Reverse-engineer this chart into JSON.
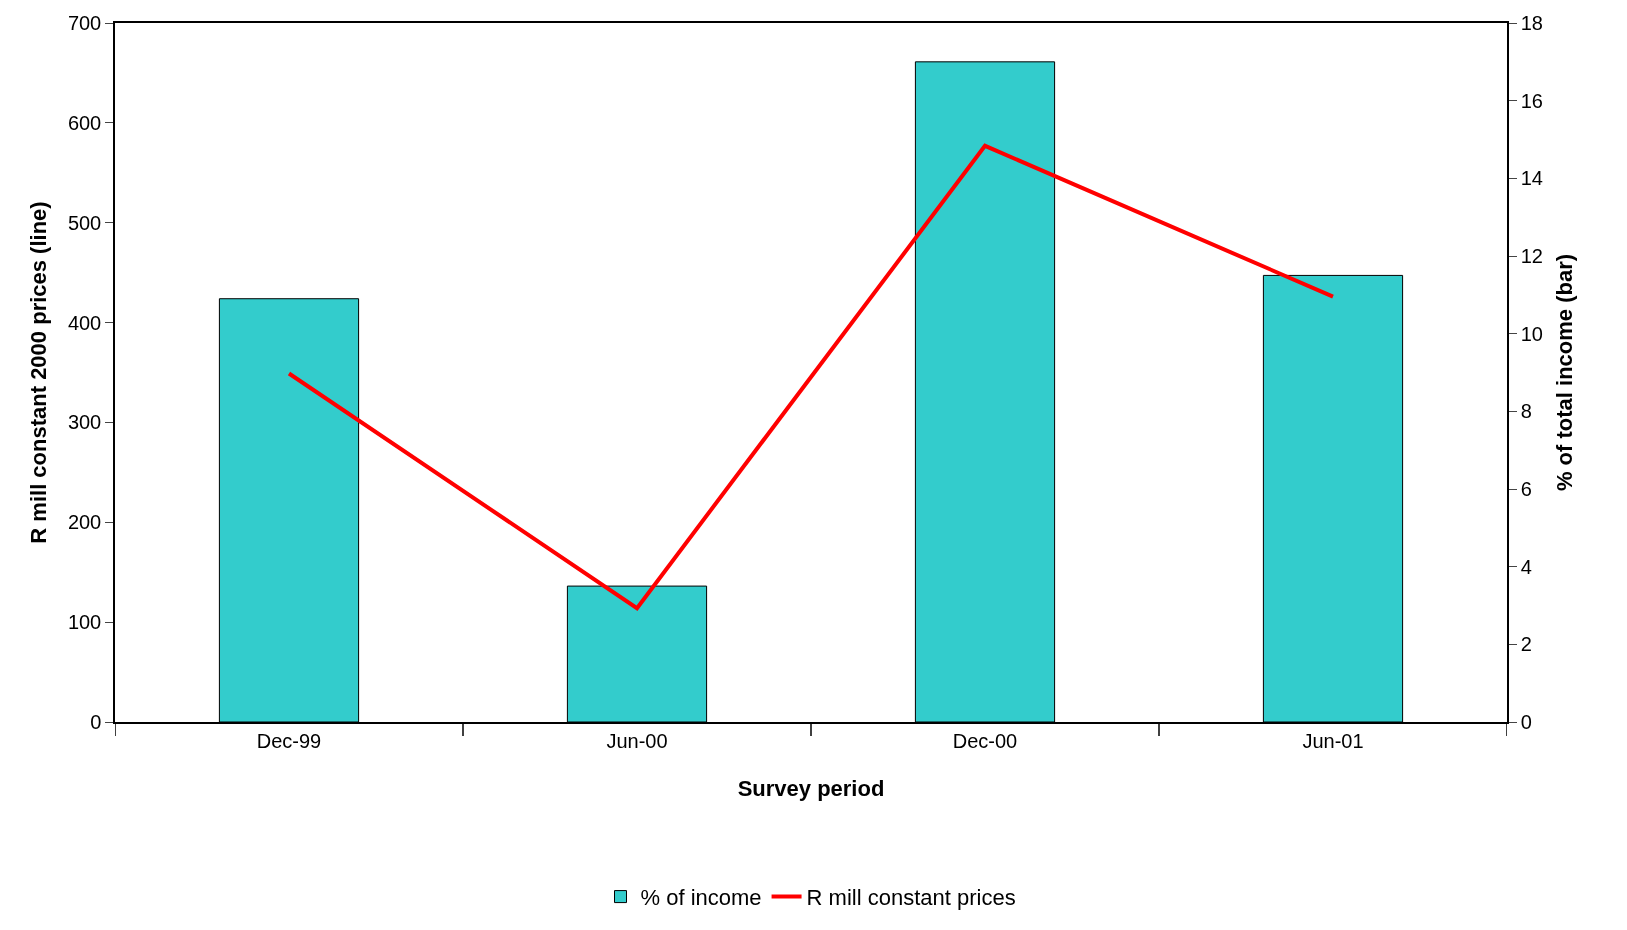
{
  "chart_data": {
    "type": "bar",
    "xlabel": "Survey period",
    "ylabel": "R mill constant 2000 prices (line)",
    "y2label": "% of total income (bar)",
    "categories": [
      "Dec-99",
      "Jun-00",
      "Dec-00",
      "Jun-01"
    ],
    "series": [
      {
        "name": "% of income",
        "axis": "y2",
        "color": "#33cccc",
        "values": [
          10.9,
          3.5,
          17.0,
          11.5
        ]
      },
      {
        "name": "R mill constant prices",
        "type": "line",
        "axis": "y",
        "color": "#ff0000",
        "values": [
          349,
          114,
          577,
          426
        ]
      }
    ],
    "ylim": [
      0,
      700
    ],
    "yticks": [
      0,
      100,
      200,
      300,
      400,
      500,
      600,
      700
    ],
    "y2lim": [
      0,
      18
    ],
    "y2ticks": [
      0,
      2,
      4,
      6,
      8,
      10,
      12,
      14,
      16,
      18
    ],
    "legend": "bottom",
    "marker": "none",
    "line_style": "solid"
  }
}
